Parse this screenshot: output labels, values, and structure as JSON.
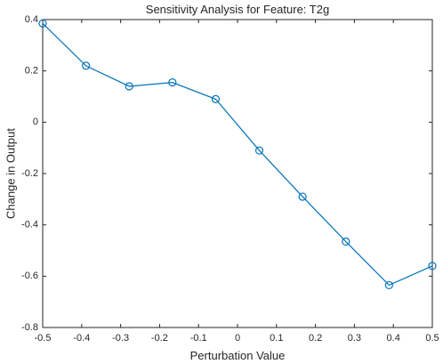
{
  "chart_data": {
    "type": "line",
    "title": "Sensitivity Analysis for Feature: T2g",
    "xlabel": "Perturbation Value",
    "ylabel": "Change in Output",
    "xlim": [
      -0.5,
      0.5
    ],
    "ylim": [
      -0.8,
      0.4
    ],
    "xticks": [
      "-0.5",
      "-0.4",
      "-0.3",
      "-0.2",
      "-0.1",
      "0",
      "0.1",
      "0.2",
      "0.3",
      "0.4",
      "0.5"
    ],
    "yticks": [
      "0.4",
      "0.2",
      "0",
      "-0.2",
      "-0.4",
      "-0.6",
      "-0.8"
    ],
    "x": [
      -0.5,
      -0.389,
      -0.278,
      -0.167,
      -0.056,
      0.056,
      0.167,
      0.278,
      0.389,
      0.5
    ],
    "y": [
      0.385,
      0.22,
      0.14,
      0.155,
      0.09,
      -0.11,
      -0.29,
      -0.465,
      -0.635,
      -0.56
    ],
    "grid": false,
    "marker": "circle",
    "line_color": "#0072BD"
  }
}
